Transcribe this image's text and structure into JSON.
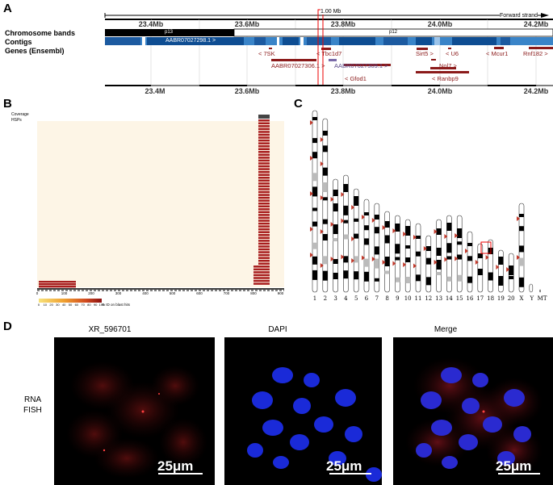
{
  "panelA": {
    "letter": "A",
    "span_label": "1.00 Mb",
    "strand_label": "Forward strand",
    "top_ticks": [
      "23.4Mb",
      "23.6Mb",
      "23.8Mb",
      "24.0Mb",
      "24.2Mb"
    ],
    "bottom_ticks": [
      "23.4M",
      "23.6Mb",
      "23.8Mb",
      "24.0Mb",
      "24.2Mb"
    ],
    "track_labels": [
      "Chromosome bands",
      "Contigs",
      "Genes (Ensembl)"
    ],
    "band_labels": [
      "p13",
      "p12"
    ],
    "contig_label": "AABR07027298.1 >",
    "genes": [
      "< 7SK",
      "< Tbc1d7",
      "AABR07027306.1 >",
      "AABR07027309.1 >",
      "< Gfod1",
      "Sirt5 >",
      "< U6",
      "Nol7 >",
      "< Ranbp9",
      "< Mcur1",
      "Rnf182 >"
    ]
  },
  "panelB": {
    "letter": "B",
    "labels": [
      "Coverage",
      "HSPs"
    ],
    "axis_ticks": [
      "0",
      "100",
      "200",
      "300",
      "400",
      "500",
      "600",
      "700",
      "800",
      "900"
    ],
    "legend_ticks": [
      "0",
      "10",
      "20",
      "30",
      "40",
      "50",
      "60",
      "70",
      "80",
      "90",
      "100"
    ],
    "legend_text": "% ID on blast hits"
  },
  "panelC": {
    "letter": "C",
    "chromosomes": [
      "1",
      "2",
      "3",
      "4",
      "5",
      "6",
      "7",
      "8",
      "9",
      "10",
      "11",
      "12",
      "13",
      "14",
      "15",
      "16",
      "17",
      "18",
      "19",
      "20",
      "X",
      "Y",
      "MT"
    ]
  },
  "panelD": {
    "letter": "D",
    "titles": [
      "XR_596701",
      "DAPI",
      "Merge"
    ],
    "row_label_1": "RNA",
    "row_label_2": "FISH",
    "scale_text": "25μm"
  }
}
